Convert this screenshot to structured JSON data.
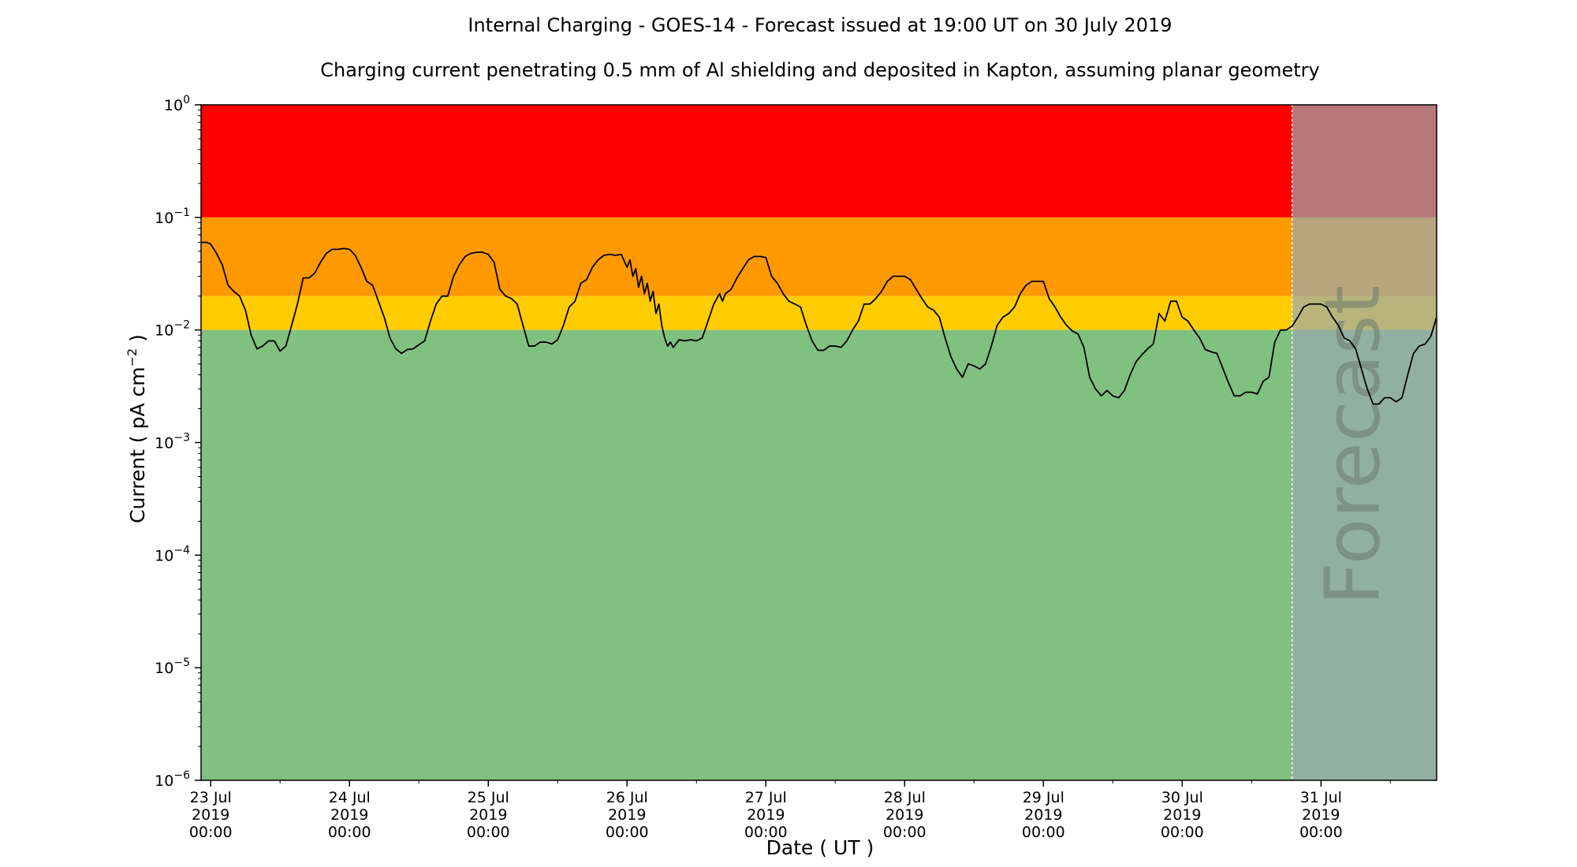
{
  "chart_data": {
    "type": "line",
    "title": "Internal Charging - GOES-14 - Forecast issued at 19:00 UT on 30 July 2019",
    "subtitle": "Charging current penetrating 0.5 mm of Al shielding and deposited in Kapton, assuming planar geometry",
    "xlabel": "Date ( UT )",
    "ylabel_main": "Current ( pA cm",
    "ylabel_sup": "−2",
    "ylabel_end": " )",
    "forecast_label": "Forecast",
    "y_scale": "log",
    "ylim": [
      1e-06,
      1
    ],
    "xlim": [
      "2019-07-22T22:20",
      "2019-07-31T20:00"
    ],
    "forecast_start": "2019-07-30T19:00",
    "y_ticks": [
      {
        "value": 1e-06,
        "base": "10",
        "exp": "−6"
      },
      {
        "value": 1e-05,
        "base": "10",
        "exp": "−5"
      },
      {
        "value": 0.0001,
        "base": "10",
        "exp": "−4"
      },
      {
        "value": 0.001,
        "base": "10",
        "exp": "−3"
      },
      {
        "value": 0.01,
        "base": "10",
        "exp": "−2"
      },
      {
        "value": 0.1,
        "base": "10",
        "exp": "−1"
      },
      {
        "value": 1,
        "base": "10",
        "exp": "0"
      }
    ],
    "x_ticks": [
      {
        "date": "2019-07-23T00:00",
        "day": "23 Jul",
        "year": "2019",
        "time": "00:00"
      },
      {
        "date": "2019-07-24T00:00",
        "day": "24 Jul",
        "year": "2019",
        "time": "00:00"
      },
      {
        "date": "2019-07-25T00:00",
        "day": "25 Jul",
        "year": "2019",
        "time": "00:00"
      },
      {
        "date": "2019-07-26T00:00",
        "day": "26 Jul",
        "year": "2019",
        "time": "00:00"
      },
      {
        "date": "2019-07-27T00:00",
        "day": "27 Jul",
        "year": "2019",
        "time": "00:00"
      },
      {
        "date": "2019-07-28T00:00",
        "day": "28 Jul",
        "year": "2019",
        "time": "00:00"
      },
      {
        "date": "2019-07-29T00:00",
        "day": "29 Jul",
        "year": "2019",
        "time": "00:00"
      },
      {
        "date": "2019-07-30T00:00",
        "day": "30 Jul",
        "year": "2019",
        "time": "00:00"
      },
      {
        "date": "2019-07-31T00:00",
        "day": "31 Jul",
        "year": "2019",
        "time": "00:00"
      }
    ],
    "bands": [
      {
        "level": "red",
        "from": 0.1,
        "to": 1,
        "color": "#ff0000"
      },
      {
        "level": "orange",
        "from": 0.02,
        "to": 0.1,
        "color": "#ff9900"
      },
      {
        "level": "yellow",
        "from": 0.01,
        "to": 0.02,
        "color": "#ffcc00"
      },
      {
        "level": "green",
        "from": 1e-06,
        "to": 0.01,
        "color": "#80c080"
      }
    ],
    "forecast_overlay_color": "#9aaab0",
    "grid": false,
    "series": [
      {
        "color": "#000000",
        "points": [
          [
            "2019-07-22T22:20",
            0.06
          ],
          [
            "2019-07-22T23:20",
            0.06
          ],
          [
            "2019-07-23T00:00",
            0.058
          ],
          [
            "2019-07-23T01:00",
            0.048
          ],
          [
            "2019-07-23T02:00",
            0.038
          ],
          [
            "2019-07-23T03:00",
            0.025
          ],
          [
            "2019-07-23T04:00",
            0.022
          ],
          [
            "2019-07-23T05:00",
            0.02
          ],
          [
            "2019-07-23T06:00",
            0.015
          ],
          [
            "2019-07-23T07:00",
            0.009
          ],
          [
            "2019-07-23T08:00",
            0.0068
          ],
          [
            "2019-07-23T09:00",
            0.0072
          ],
          [
            "2019-07-23T10:00",
            0.008
          ],
          [
            "2019-07-23T11:00",
            0.008
          ],
          [
            "2019-07-23T12:00",
            0.0065
          ],
          [
            "2019-07-23T13:00",
            0.0072
          ],
          [
            "2019-07-23T14:00",
            0.011
          ],
          [
            "2019-07-23T15:00",
            0.017
          ],
          [
            "2019-07-23T16:00",
            0.029
          ],
          [
            "2019-07-23T17:00",
            0.029
          ],
          [
            "2019-07-23T18:00",
            0.032
          ],
          [
            "2019-07-23T19:00",
            0.04
          ],
          [
            "2019-07-23T20:00",
            0.048
          ],
          [
            "2019-07-23T21:00",
            0.052
          ],
          [
            "2019-07-23T22:00",
            0.052
          ],
          [
            "2019-07-23T23:00",
            0.053
          ],
          [
            "2019-07-24T00:00",
            0.052
          ],
          [
            "2019-07-24T01:00",
            0.046
          ],
          [
            "2019-07-24T02:00",
            0.036
          ],
          [
            "2019-07-24T03:00",
            0.027
          ],
          [
            "2019-07-24T04:00",
            0.025
          ],
          [
            "2019-07-24T05:00",
            0.018
          ],
          [
            "2019-07-24T06:00",
            0.013
          ],
          [
            "2019-07-24T07:00",
            0.0085
          ],
          [
            "2019-07-24T08:00",
            0.0068
          ],
          [
            "2019-07-24T09:00",
            0.0062
          ],
          [
            "2019-07-24T10:00",
            0.0067
          ],
          [
            "2019-07-24T11:00",
            0.0068
          ],
          [
            "2019-07-24T12:00",
            0.0074
          ],
          [
            "2019-07-24T13:00",
            0.008
          ],
          [
            "2019-07-24T14:00",
            0.012
          ],
          [
            "2019-07-24T15:00",
            0.017
          ],
          [
            "2019-07-24T16:00",
            0.02
          ],
          [
            "2019-07-24T17:00",
            0.02
          ],
          [
            "2019-07-24T18:00",
            0.03
          ],
          [
            "2019-07-24T19:00",
            0.038
          ],
          [
            "2019-07-24T20:00",
            0.045
          ],
          [
            "2019-07-24T21:00",
            0.048
          ],
          [
            "2019-07-24T22:00",
            0.049
          ],
          [
            "2019-07-24T23:00",
            0.049
          ],
          [
            "2019-07-25T00:00",
            0.047
          ],
          [
            "2019-07-25T01:00",
            0.04
          ],
          [
            "2019-07-25T02:00",
            0.023
          ],
          [
            "2019-07-25T03:00",
            0.02
          ],
          [
            "2019-07-25T04:00",
            0.019
          ],
          [
            "2019-07-25T05:00",
            0.017
          ],
          [
            "2019-07-25T06:00",
            0.011
          ],
          [
            "2019-07-25T07:00",
            0.0072
          ],
          [
            "2019-07-25T08:00",
            0.0072
          ],
          [
            "2019-07-25T09:00",
            0.0078
          ],
          [
            "2019-07-25T10:00",
            0.0078
          ],
          [
            "2019-07-25T11:00",
            0.0075
          ],
          [
            "2019-07-25T12:00",
            0.0082
          ],
          [
            "2019-07-25T13:00",
            0.011
          ],
          [
            "2019-07-25T14:00",
            0.016
          ],
          [
            "2019-07-25T15:00",
            0.018
          ],
          [
            "2019-07-25T16:00",
            0.026
          ],
          [
            "2019-07-25T17:00",
            0.028
          ],
          [
            "2019-07-25T18:00",
            0.036
          ],
          [
            "2019-07-25T19:00",
            0.042
          ],
          [
            "2019-07-25T20:00",
            0.046
          ],
          [
            "2019-07-25T21:00",
            0.047
          ],
          [
            "2019-07-25T22:00",
            0.046
          ],
          [
            "2019-07-25T23:00",
            0.047
          ],
          [
            "2019-07-26T00:00",
            0.036
          ],
          [
            "2019-07-26T00:30",
            0.042
          ],
          [
            "2019-07-26T01:00",
            0.03
          ],
          [
            "2019-07-26T01:30",
            0.035
          ],
          [
            "2019-07-26T02:00",
            0.024
          ],
          [
            "2019-07-26T02:30",
            0.03
          ],
          [
            "2019-07-26T03:00",
            0.021
          ],
          [
            "2019-07-26T03:30",
            0.026
          ],
          [
            "2019-07-26T04:00",
            0.018
          ],
          [
            "2019-07-26T04:30",
            0.022
          ],
          [
            "2019-07-26T05:00",
            0.014
          ],
          [
            "2019-07-26T05:30",
            0.017
          ],
          [
            "2019-07-26T06:00",
            0.011
          ],
          [
            "2019-07-26T06:30",
            0.0085
          ],
          [
            "2019-07-26T07:00",
            0.0072
          ],
          [
            "2019-07-26T07:30",
            0.0078
          ],
          [
            "2019-07-26T08:00",
            0.007
          ],
          [
            "2019-07-26T09:00",
            0.0082
          ],
          [
            "2019-07-26T10:00",
            0.008
          ],
          [
            "2019-07-26T11:00",
            0.0082
          ],
          [
            "2019-07-26T12:00",
            0.008
          ],
          [
            "2019-07-26T13:00",
            0.0085
          ],
          [
            "2019-07-26T14:00",
            0.012
          ],
          [
            "2019-07-26T15:00",
            0.017
          ],
          [
            "2019-07-26T16:00",
            0.021
          ],
          [
            "2019-07-26T16:30",
            0.018
          ],
          [
            "2019-07-26T17:00",
            0.021
          ],
          [
            "2019-07-26T18:00",
            0.023
          ],
          [
            "2019-07-26T19:00",
            0.029
          ],
          [
            "2019-07-26T20:00",
            0.035
          ],
          [
            "2019-07-26T21:00",
            0.042
          ],
          [
            "2019-07-26T22:00",
            0.045
          ],
          [
            "2019-07-26T23:00",
            0.045
          ],
          [
            "2019-07-27T00:00",
            0.044
          ],
          [
            "2019-07-27T01:00",
            0.03
          ],
          [
            "2019-07-27T02:00",
            0.026
          ],
          [
            "2019-07-27T03:00",
            0.021
          ],
          [
            "2019-07-27T04:00",
            0.018
          ],
          [
            "2019-07-27T05:00",
            0.017
          ],
          [
            "2019-07-27T06:00",
            0.016
          ],
          [
            "2019-07-27T07:00",
            0.011
          ],
          [
            "2019-07-27T08:00",
            0.008
          ],
          [
            "2019-07-27T09:00",
            0.0066
          ],
          [
            "2019-07-27T10:00",
            0.0066
          ],
          [
            "2019-07-27T11:00",
            0.0072
          ],
          [
            "2019-07-27T12:00",
            0.0072
          ],
          [
            "2019-07-27T13:00",
            0.007
          ],
          [
            "2019-07-27T14:00",
            0.008
          ],
          [
            "2019-07-27T15:00",
            0.01
          ],
          [
            "2019-07-27T16:00",
            0.012
          ],
          [
            "2019-07-27T17:00",
            0.017
          ],
          [
            "2019-07-27T18:00",
            0.017
          ],
          [
            "2019-07-27T19:00",
            0.019
          ],
          [
            "2019-07-27T20:00",
            0.022
          ],
          [
            "2019-07-27T21:00",
            0.027
          ],
          [
            "2019-07-27T22:00",
            0.03
          ],
          [
            "2019-07-27T23:00",
            0.03
          ],
          [
            "2019-07-28T00:00",
            0.03
          ],
          [
            "2019-07-28T01:00",
            0.028
          ],
          [
            "2019-07-28T02:00",
            0.023
          ],
          [
            "2019-07-28T03:00",
            0.019
          ],
          [
            "2019-07-28T04:00",
            0.016
          ],
          [
            "2019-07-28T05:00",
            0.015
          ],
          [
            "2019-07-28T06:00",
            0.013
          ],
          [
            "2019-07-28T07:00",
            0.0085
          ],
          [
            "2019-07-28T08:00",
            0.0058
          ],
          [
            "2019-07-28T09:00",
            0.0045
          ],
          [
            "2019-07-28T10:00",
            0.0038
          ],
          [
            "2019-07-28T11:00",
            0.005
          ],
          [
            "2019-07-28T12:00",
            0.0048
          ],
          [
            "2019-07-28T13:00",
            0.0045
          ],
          [
            "2019-07-28T14:00",
            0.005
          ],
          [
            "2019-07-28T15:00",
            0.0072
          ],
          [
            "2019-07-28T16:00",
            0.011
          ],
          [
            "2019-07-28T17:00",
            0.013
          ],
          [
            "2019-07-28T18:00",
            0.014
          ],
          [
            "2019-07-28T19:00",
            0.016
          ],
          [
            "2019-07-28T20:00",
            0.021
          ],
          [
            "2019-07-28T21:00",
            0.025
          ],
          [
            "2019-07-28T22:00",
            0.027
          ],
          [
            "2019-07-28T23:00",
            0.027
          ],
          [
            "2019-07-29T00:00",
            0.027
          ],
          [
            "2019-07-29T01:00",
            0.019
          ],
          [
            "2019-07-29T02:00",
            0.016
          ],
          [
            "2019-07-29T03:00",
            0.013
          ],
          [
            "2019-07-29T04:00",
            0.011
          ],
          [
            "2019-07-29T05:00",
            0.0098
          ],
          [
            "2019-07-29T06:00",
            0.0092
          ],
          [
            "2019-07-29T07:00",
            0.007
          ],
          [
            "2019-07-29T08:00",
            0.0038
          ],
          [
            "2019-07-29T09:00",
            0.003
          ],
          [
            "2019-07-29T10:00",
            0.0026
          ],
          [
            "2019-07-29T11:00",
            0.0029
          ],
          [
            "2019-07-29T12:00",
            0.0026
          ],
          [
            "2019-07-29T13:00",
            0.0025
          ],
          [
            "2019-07-29T14:00",
            0.0029
          ],
          [
            "2019-07-29T15:00",
            0.004
          ],
          [
            "2019-07-29T16:00",
            0.0052
          ],
          [
            "2019-07-29T17:00",
            0.006
          ],
          [
            "2019-07-29T18:00",
            0.0068
          ],
          [
            "2019-07-29T19:00",
            0.0075
          ],
          [
            "2019-07-29T20:00",
            0.014
          ],
          [
            "2019-07-29T21:00",
            0.012
          ],
          [
            "2019-07-29T22:00",
            0.018
          ],
          [
            "2019-07-29T23:00",
            0.018
          ],
          [
            "2019-07-30T00:00",
            0.013
          ],
          [
            "2019-07-30T01:00",
            0.012
          ],
          [
            "2019-07-30T02:00",
            0.01
          ],
          [
            "2019-07-30T03:00",
            0.0085
          ],
          [
            "2019-07-30T04:00",
            0.0067
          ],
          [
            "2019-07-30T05:00",
            0.0064
          ],
          [
            "2019-07-30T06:00",
            0.0062
          ],
          [
            "2019-07-30T07:00",
            0.0046
          ],
          [
            "2019-07-30T08:00",
            0.0034
          ],
          [
            "2019-07-30T09:00",
            0.0026
          ],
          [
            "2019-07-30T10:00",
            0.0026
          ],
          [
            "2019-07-30T11:00",
            0.0028
          ],
          [
            "2019-07-30T12:00",
            0.0028
          ],
          [
            "2019-07-30T13:00",
            0.0027
          ],
          [
            "2019-07-30T14:00",
            0.0035
          ],
          [
            "2019-07-30T15:00",
            0.0038
          ],
          [
            "2019-07-30T16:00",
            0.0078
          ],
          [
            "2019-07-30T17:00",
            0.01
          ],
          [
            "2019-07-30T18:00",
            0.01
          ],
          [
            "2019-07-30T19:00",
            0.0108
          ],
          [
            "2019-07-30T20:00",
            0.013
          ],
          [
            "2019-07-30T21:00",
            0.016
          ],
          [
            "2019-07-30T22:00",
            0.017
          ],
          [
            "2019-07-30T23:00",
            0.017
          ],
          [
            "2019-07-31T00:00",
            0.017
          ],
          [
            "2019-07-31T01:00",
            0.016
          ],
          [
            "2019-07-31T02:00",
            0.013
          ],
          [
            "2019-07-31T03:00",
            0.011
          ],
          [
            "2019-07-31T04:00",
            0.0085
          ],
          [
            "2019-07-31T05:00",
            0.008
          ],
          [
            "2019-07-31T06:00",
            0.0068
          ],
          [
            "2019-07-31T07:00",
            0.0045
          ],
          [
            "2019-07-31T08:00",
            0.003
          ],
          [
            "2019-07-31T09:00",
            0.0022
          ],
          [
            "2019-07-31T10:00",
            0.0022
          ],
          [
            "2019-07-31T11:00",
            0.0025
          ],
          [
            "2019-07-31T12:00",
            0.0025
          ],
          [
            "2019-07-31T13:00",
            0.0023
          ],
          [
            "2019-07-31T14:00",
            0.0025
          ],
          [
            "2019-07-31T15:00",
            0.004
          ],
          [
            "2019-07-31T16:00",
            0.0062
          ],
          [
            "2019-07-31T17:00",
            0.0072
          ],
          [
            "2019-07-31T18:00",
            0.0075
          ],
          [
            "2019-07-31T19:00",
            0.0088
          ],
          [
            "2019-07-31T20:00",
            0.013
          ]
        ]
      }
    ]
  }
}
